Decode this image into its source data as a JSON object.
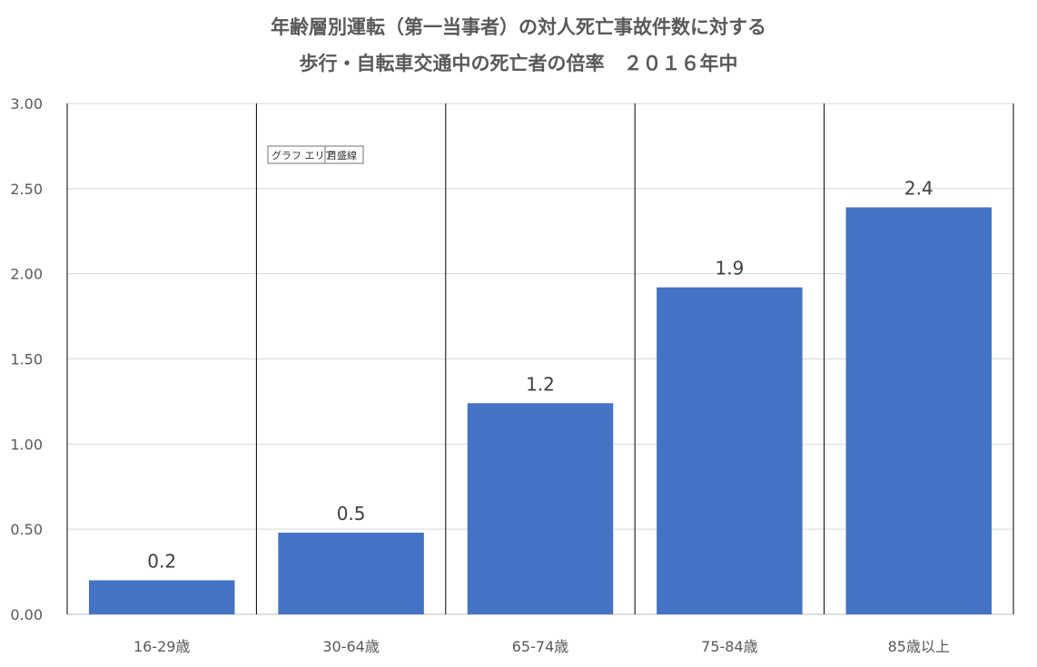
{
  "chart_data": {
    "type": "bar",
    "title": [
      "年齢層別運転（第一当事者）の対人死亡事故件数に対する",
      "歩行・自転車交通中の死亡者の倍率　２０１６年中"
    ],
    "categories": [
      "16-29歳",
      "30-64歳",
      "65-74歳",
      "75-84歳",
      "85歳以上"
    ],
    "values": [
      0.2,
      0.48,
      1.24,
      1.92,
      2.39
    ],
    "data_labels": [
      "0.2",
      "0.5",
      "1.2",
      "1.9",
      "2.4"
    ],
    "y_ticks": [
      "0.00",
      "0.50",
      "1.00",
      "1.50",
      "2.00",
      "2.50",
      "3.00"
    ],
    "ylim": [
      0,
      3
    ],
    "xlabel": "",
    "ylabel": "",
    "grid": true,
    "legend": "none",
    "bar_color": "#4472C4",
    "gridline_color": "#D9D9D9",
    "separator_color": "#000000"
  },
  "tooltip": {
    "left": "グラフ エリア",
    "right": "目盛線"
  }
}
